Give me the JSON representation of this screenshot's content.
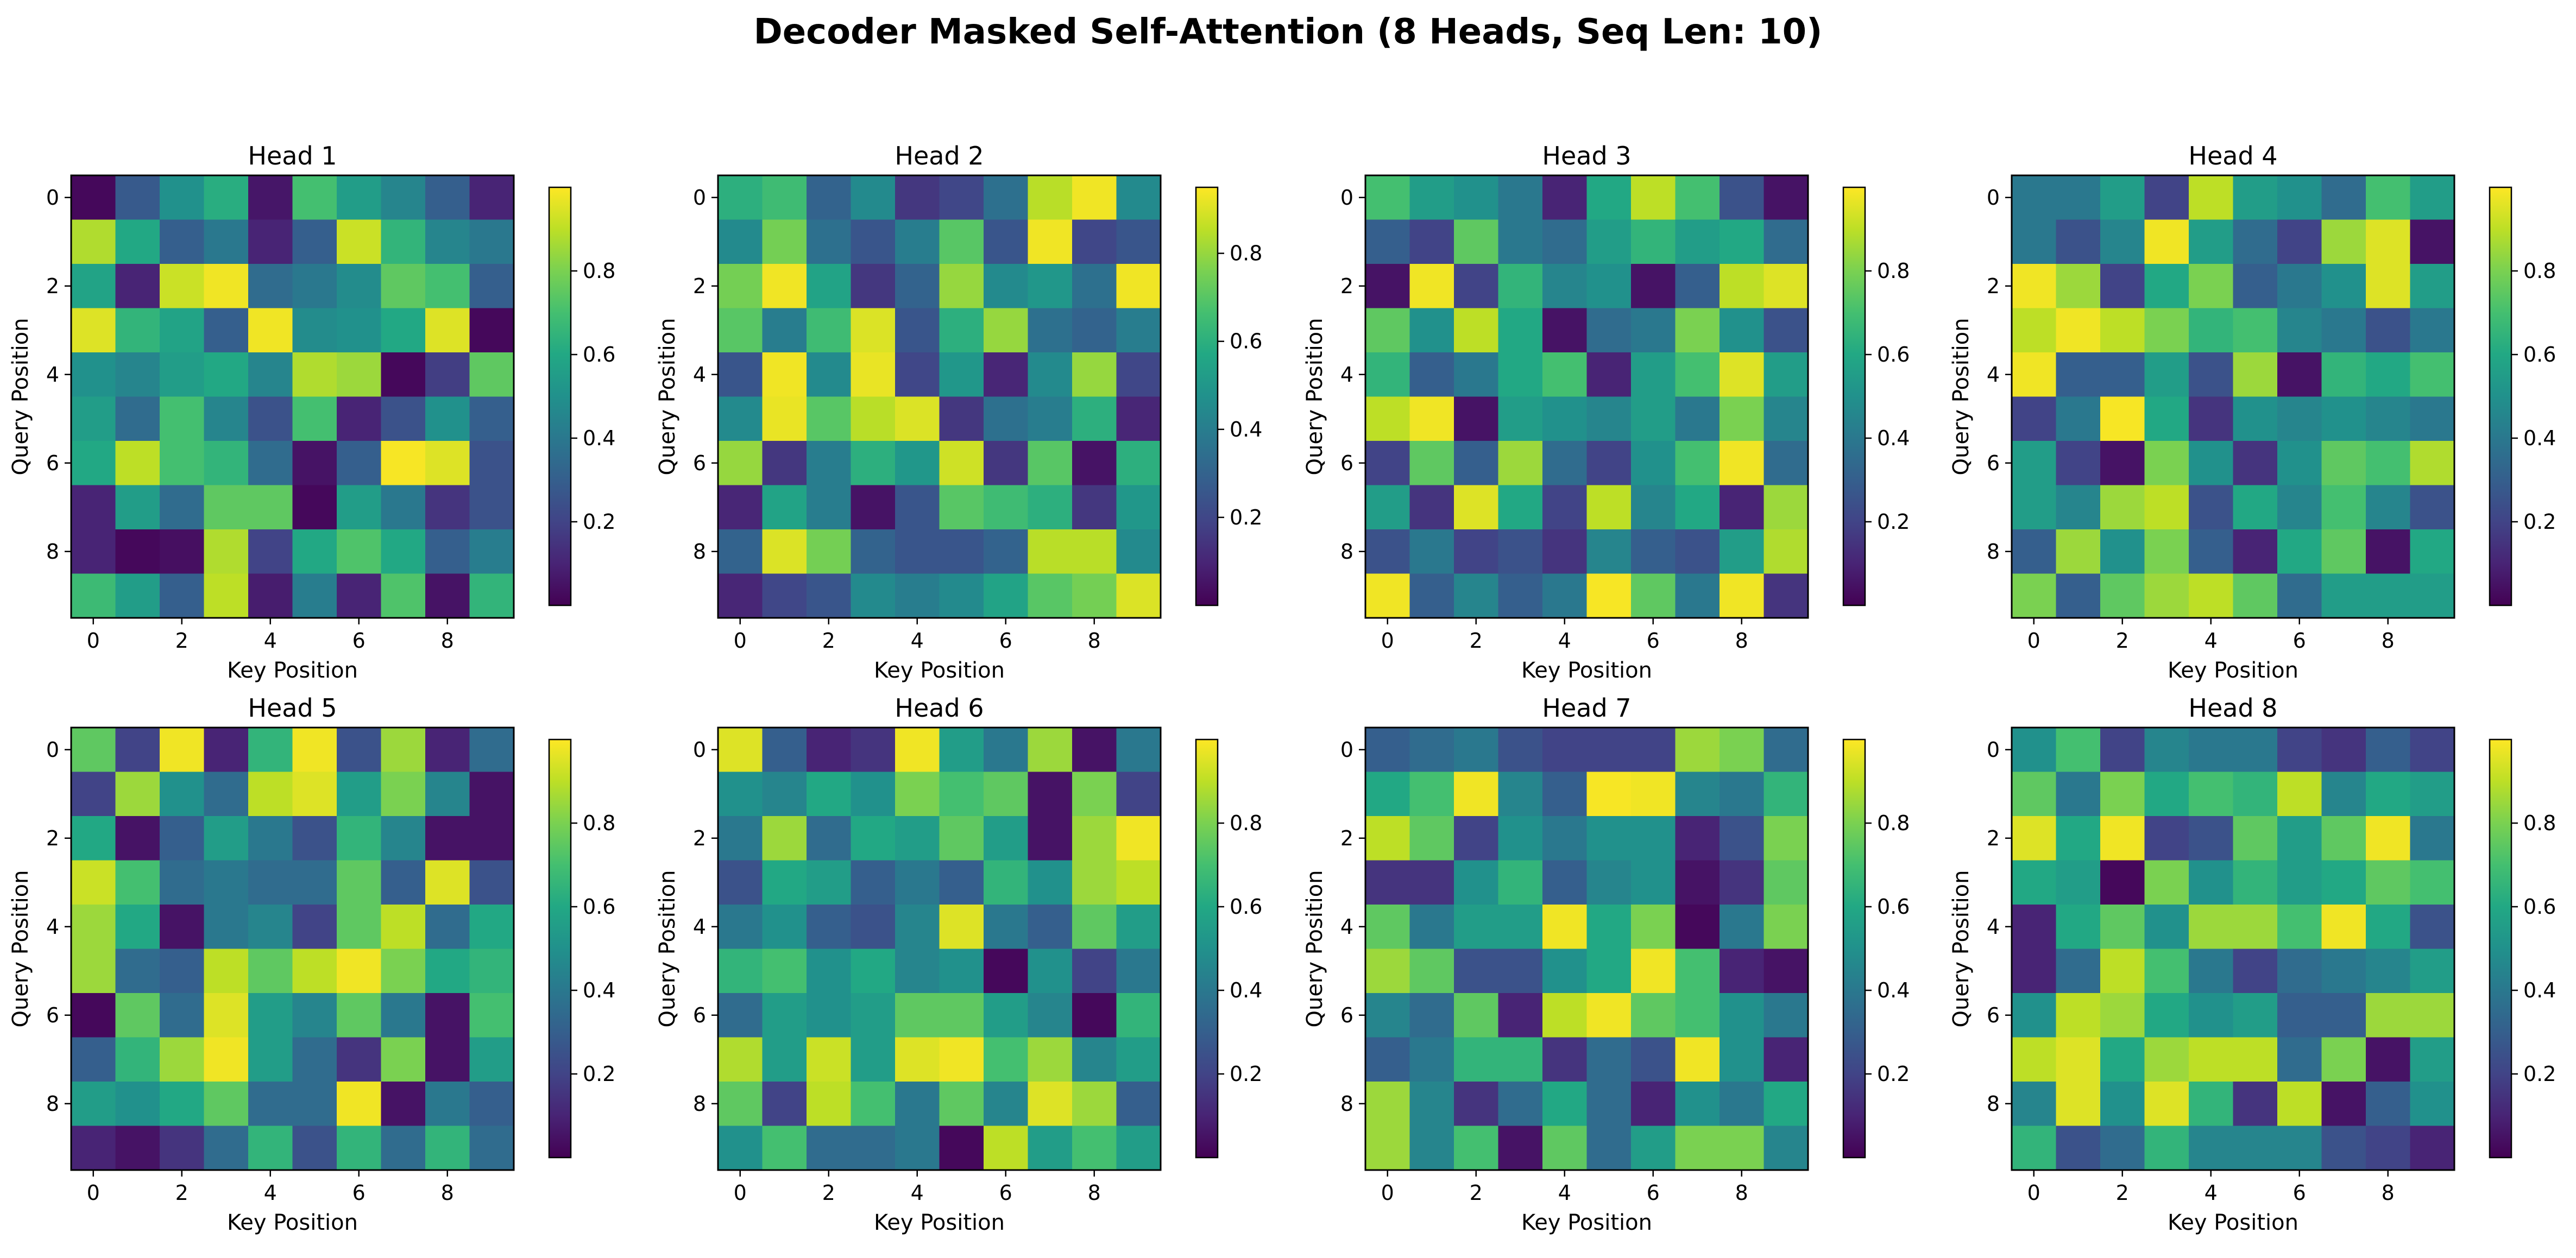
{
  "figure": {
    "title": "Decoder Masked Self-Attention (8 Heads, Seq Len: 10)"
  },
  "chart_data": [
    {
      "type": "heatmap",
      "title": "Head 1",
      "xlabel": "Key Position",
      "ylabel": "Query Position",
      "x_ticks": [
        "0",
        "2",
        "4",
        "6",
        "8"
      ],
      "y_ticks": [
        "0",
        "2",
        "4",
        "6",
        "8"
      ],
      "colorbar_ticks": [
        "0.2",
        "0.4",
        "0.6",
        "0.8"
      ],
      "vmin": 0.0,
      "vmax": 1.0,
      "colormap": "viridis",
      "matrix": [
        [
          0.02,
          0.28,
          0.5,
          0.62,
          0.06,
          0.7,
          0.55,
          0.45,
          0.3,
          0.1
        ],
        [
          0.88,
          0.6,
          0.3,
          0.4,
          0.1,
          0.3,
          0.92,
          0.65,
          0.45,
          0.4
        ],
        [
          0.58,
          0.1,
          0.92,
          0.98,
          0.35,
          0.4,
          0.48,
          0.75,
          0.7,
          0.3
        ],
        [
          0.95,
          0.65,
          0.58,
          0.3,
          0.98,
          0.48,
          0.5,
          0.6,
          0.95,
          0.02
        ],
        [
          0.5,
          0.45,
          0.55,
          0.6,
          0.45,
          0.88,
          0.85,
          0.02,
          0.18,
          0.75
        ],
        [
          0.55,
          0.35,
          0.7,
          0.45,
          0.25,
          0.7,
          0.1,
          0.25,
          0.5,
          0.3
        ],
        [
          0.6,
          0.9,
          0.7,
          0.65,
          0.35,
          0.05,
          0.3,
          0.99,
          0.95,
          0.25
        ],
        [
          0.1,
          0.55,
          0.35,
          0.75,
          0.75,
          0.02,
          0.55,
          0.4,
          0.15,
          0.25
        ],
        [
          0.1,
          0.02,
          0.04,
          0.88,
          0.2,
          0.6,
          0.72,
          0.6,
          0.3,
          0.42
        ],
        [
          0.68,
          0.55,
          0.3,
          0.9,
          0.08,
          0.42,
          0.1,
          0.72,
          0.05,
          0.65
        ]
      ]
    },
    {
      "type": "heatmap",
      "title": "Head 2",
      "xlabel": "Key Position",
      "ylabel": "Query Position",
      "x_ticks": [
        "0",
        "2",
        "4",
        "6",
        "8"
      ],
      "y_ticks": [
        "0",
        "2",
        "4",
        "6",
        "8"
      ],
      "colorbar_ticks": [
        "0.2",
        "0.4",
        "0.6",
        "0.8"
      ],
      "vmin": 0.0,
      "vmax": 0.95,
      "colormap": "viridis",
      "matrix": [
        [
          0.6,
          0.65,
          0.3,
          0.45,
          0.15,
          0.2,
          0.35,
          0.85,
          0.93,
          0.45
        ],
        [
          0.45,
          0.75,
          0.35,
          0.25,
          0.4,
          0.7,
          0.25,
          0.93,
          0.2,
          0.25
        ],
        [
          0.75,
          0.93,
          0.55,
          0.15,
          0.3,
          0.8,
          0.45,
          0.5,
          0.35,
          0.93
        ],
        [
          0.7,
          0.4,
          0.65,
          0.9,
          0.25,
          0.6,
          0.8,
          0.35,
          0.3,
          0.4
        ],
        [
          0.25,
          0.93,
          0.45,
          0.92,
          0.2,
          0.5,
          0.1,
          0.45,
          0.8,
          0.2
        ],
        [
          0.45,
          0.92,
          0.7,
          0.85,
          0.9,
          0.15,
          0.35,
          0.4,
          0.6,
          0.1
        ],
        [
          0.8,
          0.15,
          0.4,
          0.6,
          0.5,
          0.88,
          0.15,
          0.7,
          0.05,
          0.6
        ],
        [
          0.1,
          0.55,
          0.4,
          0.05,
          0.25,
          0.7,
          0.65,
          0.6,
          0.15,
          0.5
        ],
        [
          0.3,
          0.9,
          0.75,
          0.3,
          0.25,
          0.25,
          0.3,
          0.85,
          0.85,
          0.45
        ],
        [
          0.1,
          0.2,
          0.25,
          0.45,
          0.4,
          0.45,
          0.55,
          0.7,
          0.75,
          0.9
        ]
      ]
    },
    {
      "type": "heatmap",
      "title": "Head 3",
      "xlabel": "Key Position",
      "ylabel": "Query Position",
      "x_ticks": [
        "0",
        "2",
        "4",
        "6",
        "8"
      ],
      "y_ticks": [
        "0",
        "2",
        "4",
        "6",
        "8"
      ],
      "colorbar_ticks": [
        "0.2",
        "0.4",
        "0.6",
        "0.8"
      ],
      "vmin": 0.0,
      "vmax": 1.0,
      "colormap": "viridis",
      "matrix": [
        [
          0.7,
          0.55,
          0.5,
          0.4,
          0.1,
          0.6,
          0.9,
          0.7,
          0.25,
          0.05
        ],
        [
          0.3,
          0.2,
          0.75,
          0.4,
          0.35,
          0.55,
          0.65,
          0.55,
          0.6,
          0.35
        ],
        [
          0.05,
          0.98,
          0.2,
          0.65,
          0.45,
          0.5,
          0.05,
          0.3,
          0.9,
          0.95
        ],
        [
          0.75,
          0.5,
          0.9,
          0.6,
          0.05,
          0.35,
          0.4,
          0.8,
          0.5,
          0.25
        ],
        [
          0.65,
          0.3,
          0.4,
          0.6,
          0.7,
          0.1,
          0.55,
          0.7,
          0.95,
          0.55
        ],
        [
          0.9,
          0.98,
          0.05,
          0.55,
          0.5,
          0.45,
          0.55,
          0.4,
          0.8,
          0.45
        ],
        [
          0.2,
          0.75,
          0.3,
          0.85,
          0.35,
          0.2,
          0.5,
          0.7,
          0.98,
          0.35
        ],
        [
          0.55,
          0.15,
          0.95,
          0.6,
          0.2,
          0.9,
          0.45,
          0.6,
          0.1,
          0.85
        ],
        [
          0.25,
          0.4,
          0.2,
          0.25,
          0.15,
          0.45,
          0.3,
          0.25,
          0.55,
          0.88
        ],
        [
          0.98,
          0.3,
          0.45,
          0.3,
          0.4,
          0.99,
          0.75,
          0.4,
          0.98,
          0.15
        ]
      ]
    },
    {
      "type": "heatmap",
      "title": "Head 4",
      "xlabel": "Key Position",
      "ylabel": "Query Position",
      "x_ticks": [
        "0",
        "2",
        "4",
        "6",
        "8"
      ],
      "y_ticks": [
        "0",
        "2",
        "4",
        "6",
        "8"
      ],
      "colorbar_ticks": [
        "0.2",
        "0.4",
        "0.6",
        "0.8"
      ],
      "vmin": 0.0,
      "vmax": 1.0,
      "colormap": "viridis",
      "matrix": [
        [
          0.4,
          0.4,
          0.55,
          0.2,
          0.9,
          0.55,
          0.5,
          0.35,
          0.7,
          0.55
        ],
        [
          0.4,
          0.25,
          0.45,
          0.98,
          0.55,
          0.35,
          0.2,
          0.85,
          0.95,
          0.05
        ],
        [
          0.98,
          0.85,
          0.2,
          0.6,
          0.8,
          0.3,
          0.4,
          0.5,
          0.95,
          0.55
        ],
        [
          0.9,
          0.98,
          0.9,
          0.8,
          0.65,
          0.7,
          0.45,
          0.4,
          0.25,
          0.4
        ],
        [
          0.98,
          0.3,
          0.3,
          0.55,
          0.25,
          0.85,
          0.05,
          0.65,
          0.6,
          0.7
        ],
        [
          0.2,
          0.4,
          0.99,
          0.6,
          0.15,
          0.5,
          0.45,
          0.5,
          0.45,
          0.4
        ],
        [
          0.55,
          0.2,
          0.05,
          0.8,
          0.5,
          0.15,
          0.5,
          0.75,
          0.7,
          0.88
        ],
        [
          0.55,
          0.45,
          0.85,
          0.9,
          0.25,
          0.6,
          0.45,
          0.7,
          0.45,
          0.25
        ],
        [
          0.3,
          0.85,
          0.5,
          0.8,
          0.3,
          0.1,
          0.6,
          0.75,
          0.05,
          0.6
        ],
        [
          0.8,
          0.3,
          0.75,
          0.85,
          0.9,
          0.75,
          0.35,
          0.55,
          0.55,
          0.55
        ]
      ]
    },
    {
      "type": "heatmap",
      "title": "Head 5",
      "xlabel": "Key Position",
      "ylabel": "Query Position",
      "x_ticks": [
        "0",
        "2",
        "4",
        "6",
        "8"
      ],
      "y_ticks": [
        "0",
        "2",
        "4",
        "6",
        "8"
      ],
      "colorbar_ticks": [
        "0.2",
        "0.4",
        "0.6",
        "0.8"
      ],
      "vmin": 0.0,
      "vmax": 1.0,
      "colormap": "viridis",
      "matrix": [
        [
          0.75,
          0.2,
          0.98,
          0.1,
          0.65,
          0.98,
          0.25,
          0.85,
          0.1,
          0.35
        ],
        [
          0.2,
          0.85,
          0.5,
          0.35,
          0.9,
          0.95,
          0.55,
          0.8,
          0.45,
          0.05
        ],
        [
          0.6,
          0.05,
          0.3,
          0.55,
          0.4,
          0.25,
          0.65,
          0.45,
          0.05,
          0.05
        ],
        [
          0.92,
          0.7,
          0.35,
          0.4,
          0.35,
          0.35,
          0.75,
          0.3,
          0.95,
          0.25
        ],
        [
          0.85,
          0.6,
          0.05,
          0.4,
          0.45,
          0.2,
          0.75,
          0.9,
          0.35,
          0.6
        ],
        [
          0.85,
          0.35,
          0.3,
          0.9,
          0.75,
          0.9,
          0.98,
          0.8,
          0.6,
          0.65
        ],
        [
          0.02,
          0.75,
          0.35,
          0.95,
          0.55,
          0.45,
          0.75,
          0.4,
          0.05,
          0.7
        ],
        [
          0.3,
          0.65,
          0.85,
          0.98,
          0.55,
          0.35,
          0.15,
          0.8,
          0.05,
          0.55
        ],
        [
          0.55,
          0.5,
          0.6,
          0.75,
          0.35,
          0.35,
          0.98,
          0.05,
          0.4,
          0.3
        ],
        [
          0.1,
          0.05,
          0.15,
          0.35,
          0.65,
          0.25,
          0.65,
          0.35,
          0.65,
          0.35
        ]
      ]
    },
    {
      "type": "heatmap",
      "title": "Head 6",
      "xlabel": "Key Position",
      "ylabel": "Query Position",
      "x_ticks": [
        "0",
        "2",
        "4",
        "6",
        "8"
      ],
      "y_ticks": [
        "0",
        "2",
        "4",
        "6",
        "8"
      ],
      "colorbar_ticks": [
        "0.2",
        "0.4",
        "0.6",
        "0.8"
      ],
      "vmin": 0.0,
      "vmax": 1.0,
      "colormap": "viridis",
      "matrix": [
        [
          0.95,
          0.3,
          0.1,
          0.15,
          0.98,
          0.55,
          0.4,
          0.85,
          0.05,
          0.4
        ],
        [
          0.5,
          0.45,
          0.6,
          0.5,
          0.8,
          0.7,
          0.75,
          0.05,
          0.8,
          0.2
        ],
        [
          0.4,
          0.85,
          0.35,
          0.6,
          0.55,
          0.75,
          0.55,
          0.05,
          0.85,
          0.98
        ],
        [
          0.25,
          0.6,
          0.55,
          0.3,
          0.4,
          0.3,
          0.65,
          0.5,
          0.85,
          0.9
        ],
        [
          0.4,
          0.5,
          0.3,
          0.25,
          0.45,
          0.95,
          0.4,
          0.3,
          0.75,
          0.55
        ],
        [
          0.65,
          0.7,
          0.5,
          0.6,
          0.45,
          0.5,
          0.02,
          0.5,
          0.2,
          0.4
        ],
        [
          0.35,
          0.55,
          0.5,
          0.55,
          0.75,
          0.75,
          0.55,
          0.45,
          0.02,
          0.65
        ],
        [
          0.88,
          0.55,
          0.92,
          0.55,
          0.95,
          0.98,
          0.7,
          0.85,
          0.45,
          0.55
        ],
        [
          0.75,
          0.2,
          0.9,
          0.7,
          0.4,
          0.75,
          0.45,
          0.95,
          0.85,
          0.3
        ],
        [
          0.5,
          0.7,
          0.35,
          0.35,
          0.4,
          0.02,
          0.9,
          0.55,
          0.7,
          0.55
        ]
      ]
    },
    {
      "type": "heatmap",
      "title": "Head 7",
      "xlabel": "Key Position",
      "ylabel": "Query Position",
      "x_ticks": [
        "0",
        "2",
        "4",
        "6",
        "8"
      ],
      "y_ticks": [
        "0",
        "2",
        "4",
        "6",
        "8"
      ],
      "colorbar_ticks": [
        "0.2",
        "0.4",
        "0.6",
        "0.8"
      ],
      "vmin": 0.0,
      "vmax": 1.0,
      "colormap": "viridis",
      "matrix": [
        [
          0.3,
          0.35,
          0.4,
          0.25,
          0.2,
          0.2,
          0.2,
          0.85,
          0.8,
          0.35
        ],
        [
          0.6,
          0.7,
          0.98,
          0.45,
          0.3,
          0.99,
          0.98,
          0.45,
          0.4,
          0.65
        ],
        [
          0.9,
          0.75,
          0.2,
          0.5,
          0.4,
          0.5,
          0.5,
          0.1,
          0.25,
          0.8
        ],
        [
          0.15,
          0.15,
          0.5,
          0.65,
          0.3,
          0.45,
          0.5,
          0.05,
          0.15,
          0.75
        ],
        [
          0.75,
          0.4,
          0.55,
          0.55,
          0.98,
          0.6,
          0.8,
          0.02,
          0.4,
          0.8
        ],
        [
          0.85,
          0.75,
          0.25,
          0.25,
          0.5,
          0.6,
          0.98,
          0.7,
          0.1,
          0.05
        ],
        [
          0.45,
          0.35,
          0.75,
          0.1,
          0.9,
          0.98,
          0.75,
          0.7,
          0.5,
          0.4
        ],
        [
          0.3,
          0.4,
          0.65,
          0.65,
          0.15,
          0.35,
          0.25,
          0.98,
          0.5,
          0.1
        ],
        [
          0.85,
          0.45,
          0.15,
          0.35,
          0.6,
          0.35,
          0.1,
          0.5,
          0.4,
          0.6
        ],
        [
          0.85,
          0.45,
          0.7,
          0.05,
          0.75,
          0.35,
          0.55,
          0.8,
          0.8,
          0.45
        ]
      ]
    },
    {
      "type": "heatmap",
      "title": "Head 8",
      "xlabel": "Key Position",
      "ylabel": "Query Position",
      "x_ticks": [
        "0",
        "2",
        "4",
        "6",
        "8"
      ],
      "y_ticks": [
        "0",
        "2",
        "4",
        "6",
        "8"
      ],
      "colorbar_ticks": [
        "0.2",
        "0.4",
        "0.6",
        "0.8"
      ],
      "vmin": 0.0,
      "vmax": 1.0,
      "colormap": "viridis",
      "matrix": [
        [
          0.5,
          0.7,
          0.2,
          0.45,
          0.4,
          0.4,
          0.2,
          0.15,
          0.3,
          0.2
        ],
        [
          0.75,
          0.4,
          0.8,
          0.6,
          0.7,
          0.65,
          0.9,
          0.45,
          0.6,
          0.55
        ],
        [
          0.95,
          0.6,
          0.98,
          0.2,
          0.25,
          0.75,
          0.55,
          0.75,
          0.98,
          0.4
        ],
        [
          0.6,
          0.55,
          0.02,
          0.8,
          0.5,
          0.65,
          0.55,
          0.6,
          0.75,
          0.7
        ],
        [
          0.1,
          0.6,
          0.75,
          0.5,
          0.85,
          0.85,
          0.7,
          0.98,
          0.6,
          0.25
        ],
        [
          0.1,
          0.35,
          0.9,
          0.7,
          0.4,
          0.2,
          0.35,
          0.4,
          0.45,
          0.55
        ],
        [
          0.5,
          0.9,
          0.85,
          0.6,
          0.5,
          0.55,
          0.3,
          0.3,
          0.85,
          0.85
        ],
        [
          0.9,
          0.95,
          0.6,
          0.85,
          0.9,
          0.9,
          0.35,
          0.8,
          0.05,
          0.55
        ],
        [
          0.45,
          0.95,
          0.5,
          0.95,
          0.65,
          0.15,
          0.9,
          0.05,
          0.3,
          0.5
        ],
        [
          0.65,
          0.25,
          0.35,
          0.65,
          0.45,
          0.45,
          0.45,
          0.25,
          0.2,
          0.1
        ]
      ]
    }
  ]
}
